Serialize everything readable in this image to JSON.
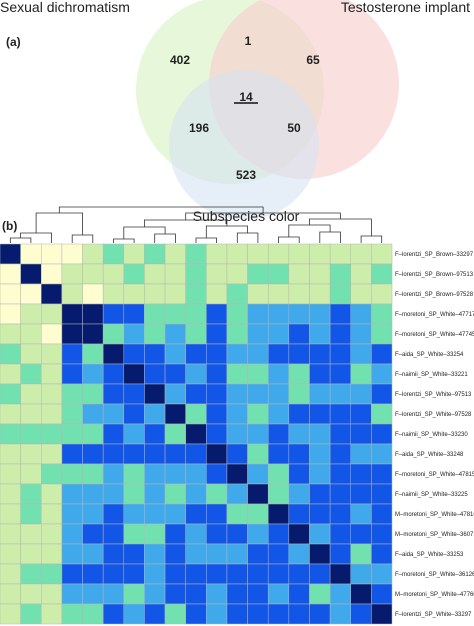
{
  "venn": {
    "panel_label": "(a)",
    "sets": [
      {
        "name": "Sexual dichromatism",
        "color": "#d9f2c6"
      },
      {
        "name": "Testosterone implant",
        "color": "#f8cccc"
      },
      {
        "name": "Subspecies color",
        "color": "#d6e2f2"
      }
    ],
    "regions": {
      "dichromatism_only": "402",
      "testosterone_only": "65",
      "subspecies_only": "523",
      "dichromatism_testosterone": "1",
      "dichromatism_subspecies": "196",
      "testosterone_subspecies": "50",
      "all_three": "14"
    }
  },
  "heatmap": {
    "panel_label": "(b)",
    "row_labels": [
      "F–lorentzi_SP_Brown–33297",
      "F–lorentzi_SP_Brown–97513",
      "F–lorentzi_SP_Brown–97528",
      "F–moretoni_SP_White–47717",
      "F–moretoni_SP_White–47745",
      "F–aida_SP_White–33254",
      "F–naimii_SP_White–33221",
      "F–lorentzi_SP_White–97513",
      "F–lorentzi_SP_White–97528",
      "F–naimii_SP_White–33230",
      "F–aida_SP_White–33248",
      "F–moretoni_SP_White–47815",
      "F–naimii_SP_White–33225",
      "M–moretoni_SP_White–47816",
      "M–moretoni_SP_White–36071",
      "F–aida_SP_White–33253",
      "F–moretoni_SP_White–36126",
      "M–moretoni_SP_White–47760",
      "F–lorentzi_SP_White–33297"
    ],
    "color_scale": [
      "#fdfdcf",
      "#cdeeaa",
      "#72e1b0",
      "#3fa9ec",
      "#1256e8",
      "#061a6e"
    ]
  }
}
